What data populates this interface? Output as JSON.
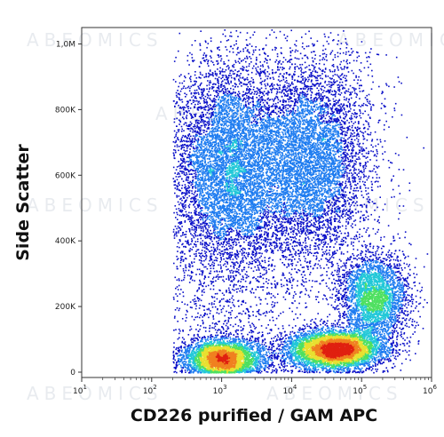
{
  "chart_data": {
    "type": "scatter",
    "subtype": "flow-cytometry-density-plot",
    "xlabel": "CD226 purified / GAM APC",
    "ylabel": "Side Scatter",
    "x_scale": "log",
    "xlim": [
      10,
      1000000
    ],
    "ylim": [
      0,
      1050000
    ],
    "x_ticks": [
      {
        "value": 10,
        "base": "10",
        "exp": "1"
      },
      {
        "value": 100,
        "base": "10",
        "exp": "2"
      },
      {
        "value": 1000,
        "base": "10",
        "exp": "3"
      },
      {
        "value": 10000,
        "base": "10",
        "exp": "4"
      },
      {
        "value": 100000,
        "base": "10",
        "exp": "5"
      },
      {
        "value": 1000000,
        "base": "10",
        "exp": "6"
      }
    ],
    "y_ticks": [
      {
        "value": 0,
        "label": "0"
      },
      {
        "value": 200000,
        "label": "200K"
      },
      {
        "value": 400000,
        "label": "400K"
      },
      {
        "value": 600000,
        "label": "600K"
      },
      {
        "value": 800000,
        "label": "800K"
      },
      {
        "value": 1000000,
        "label": "1,0M"
      }
    ],
    "populations": [
      {
        "x_center": 1300,
        "y_center": 640000,
        "x_spread_decades": 0.45,
        "y_spread": 160000,
        "weight": 0.26
      },
      {
        "x_center": 20000,
        "y_center": 650000,
        "x_spread_decades": 0.42,
        "y_spread": 160000,
        "weight": 0.22
      },
      {
        "x_center": 1000,
        "y_center": 45000,
        "x_spread_decades": 0.3,
        "y_spread": 30000,
        "weight": 0.14
      },
      {
        "x_center": 40000,
        "y_center": 70000,
        "x_spread_decades": 0.35,
        "y_spread": 30000,
        "weight": 0.2
      },
      {
        "x_center": 150000,
        "y_center": 230000,
        "x_spread_decades": 0.25,
        "y_spread": 70000,
        "weight": 0.12
      },
      {
        "x_center": 1000,
        "y_center": 300000,
        "x_spread_decades": 0.7,
        "y_spread": 200000,
        "weight": 0.06
      }
    ],
    "density_colors": [
      "#0a10c8",
      "#1e7cf0",
      "#22c8d8",
      "#4ee060",
      "#e8e030",
      "#f08020",
      "#e02010"
    ],
    "grid": false,
    "legend": "none"
  },
  "watermark": "ABEOMICS"
}
